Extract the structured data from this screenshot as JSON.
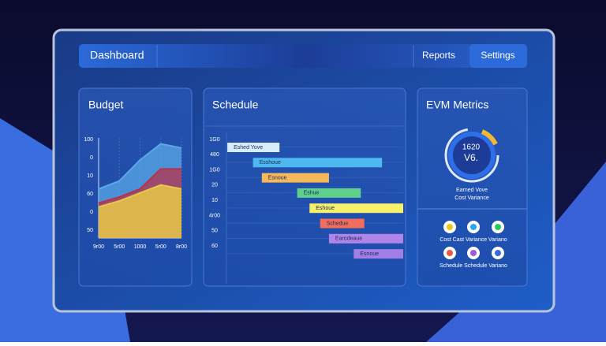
{
  "nav": {
    "title": "Dashboard",
    "links": [
      "Reports",
      "Settings"
    ]
  },
  "budget": {
    "title": "Budget",
    "axis_labels": [
      "100",
      "0",
      "10",
      "60",
      "0",
      "50"
    ],
    "x_labels": [
      "9r00",
      "5r00",
      "1000",
      "5r00",
      "8r00"
    ],
    "ylim": [
      0,
      100
    ],
    "series": [
      {
        "color": "#5aa8e8",
        "values": [
          49,
          57,
          78,
          94,
          90
        ]
      },
      {
        "color": "#b8324a",
        "values": [
          35,
          41,
          49,
          69,
          69
        ]
      },
      {
        "color": "#e8c848",
        "values": [
          31,
          37,
          45,
          53,
          49
        ]
      }
    ]
  },
  "schedule": {
    "title": "Schedule",
    "row_labels": [
      "1G0",
      "480",
      "1G0",
      "20",
      "10",
      "4r00",
      "50",
      "60"
    ],
    "xlim": [
      0,
      100
    ],
    "tasks": [
      {
        "label": "Eshed Yove",
        "start": 0.5,
        "end": 30,
        "color": "#d6eefc"
      },
      {
        "label": "Esshoue",
        "start": 15,
        "end": 88,
        "color": "#4fb8f0"
      },
      {
        "label": "Esnoue",
        "start": 20,
        "end": 58,
        "color": "#f7b85a"
      },
      {
        "label": "Eshue",
        "start": 40,
        "end": 76,
        "color": "#5fd08a"
      },
      {
        "label": "Eshoue",
        "start": 47,
        "end": 100,
        "color": "#f7f06a"
      },
      {
        "label": "Schedue",
        "start": 53,
        "end": 78,
        "color": "#f26d5b"
      },
      {
        "label": "Earodeaue",
        "start": 58,
        "end": 100,
        "color": "#b084e8"
      },
      {
        "label": "Esnoue",
        "start": 72,
        "end": 100,
        "color": "#a07ee6"
      }
    ]
  },
  "evm": {
    "title": "EVM Metrics",
    "gauge_value": "1620",
    "gauge_unit": "V6.",
    "caption": [
      "Earned Vove",
      "Cost Variance"
    ],
    "row1_label": "Cost Cast Variance Variano",
    "row2_label": "Schedule Schedule Variano"
  }
}
